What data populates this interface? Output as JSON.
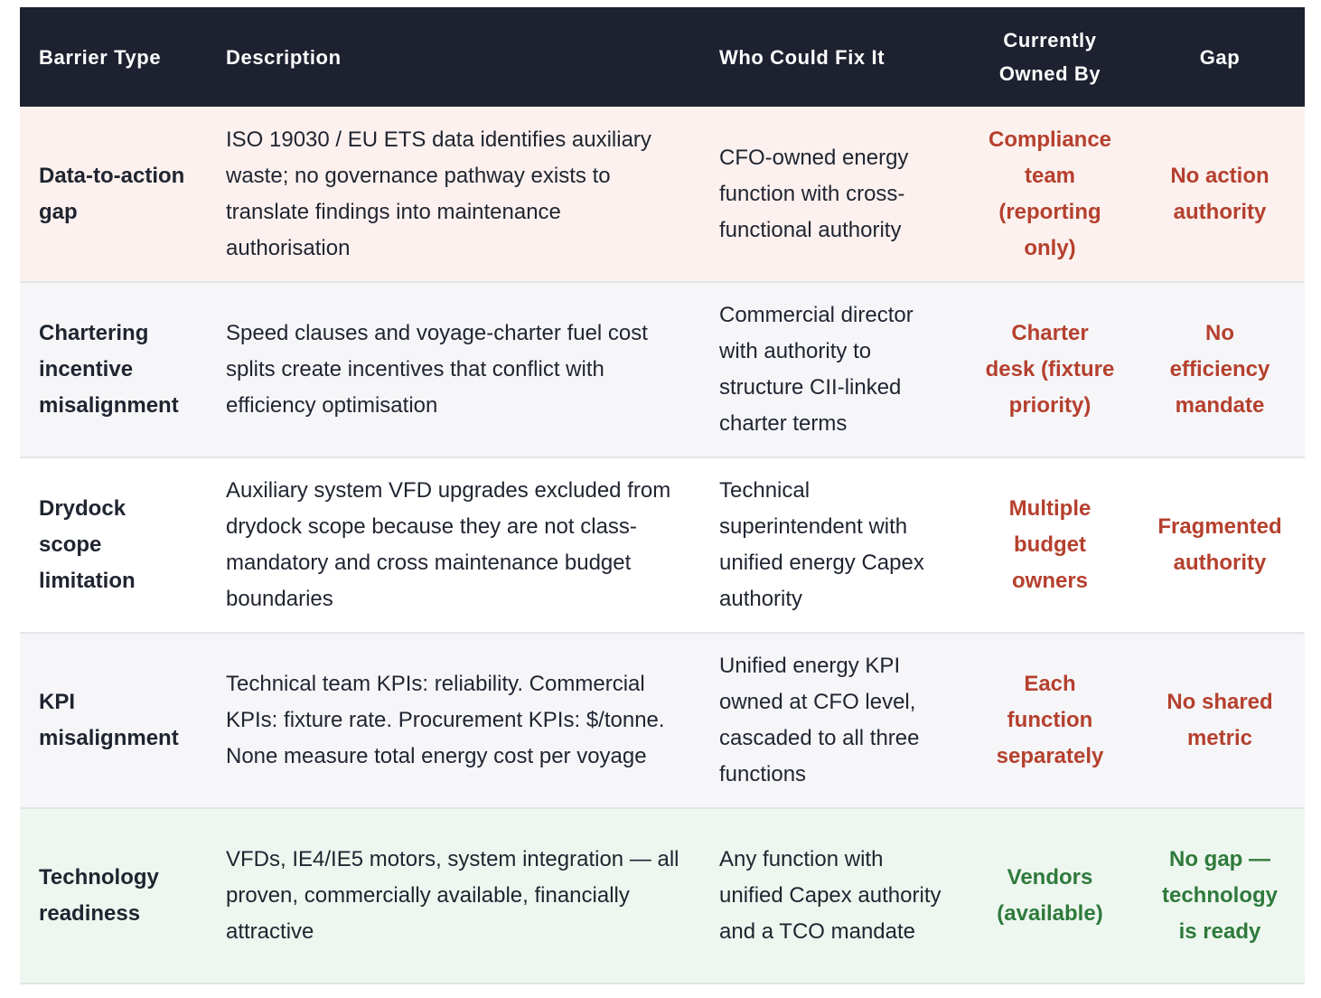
{
  "table": {
    "headers": {
      "barrier_type": "Barrier Type",
      "description": "Description",
      "who_could_fix": "Who Could Fix It",
      "currently_owned_by": "Currently Owned By",
      "gap": "Gap"
    },
    "rows": [
      {
        "barrier": "Data-to-action gap",
        "description": "ISO 19030 / EU ETS data identifies auxiliary waste; no governance pathway exists to translate findings into maintenance authorisation",
        "who_could_fix": "CFO-owned energy function with cross-functional authority",
        "owned_by": "Compliance team (reporting only)",
        "gap": "No action authority",
        "status_color": "#b5402e"
      },
      {
        "barrier": "Chartering incentive misalignment",
        "description": "Speed clauses and voyage-charter fuel cost splits create incentives that conflict with efficiency optimisation",
        "who_could_fix": "Commercial director with authority to structure CII-linked charter terms",
        "owned_by": "Charter desk (fixture priority)",
        "gap": "No efficiency mandate",
        "status_color": "#b5402e"
      },
      {
        "barrier": "Drydock scope limitation",
        "description": "Auxiliary system VFD upgrades excluded from drydock scope because they are not class-mandatory and cross maintenance budget boundaries",
        "who_could_fix": "Technical superintendent with unified energy Capex authority",
        "owned_by": "Multiple budget owners",
        "gap": "Fragmented authority",
        "status_color": "#b5402e"
      },
      {
        "barrier": "KPI misalignment",
        "description": "Technical team KPIs: reliability. Commercial KPIs: fixture rate. Procurement KPIs: $/tonne. None measure total energy cost per voyage",
        "who_could_fix": "Unified energy KPI owned at CFO level, cascaded to all three functions",
        "owned_by": "Each function separately",
        "gap": "No shared metric",
        "status_color": "#b5402e"
      },
      {
        "barrier": "Technology readiness",
        "description": "VFDs, IE4/IE5 motors, system integration — all proven, commercially available, financially attractive",
        "who_could_fix": "Any function with unified Capex authority and a TCO mandate",
        "owned_by": "Vendors (available)",
        "gap": "No gap — technology is ready",
        "status_color": "#2e7a3c"
      }
    ]
  },
  "colors": {
    "header_bg": "#1e2130",
    "red_text": "#b5402e",
    "green_text": "#2e7a3c",
    "row_pink": "#fcf1ee",
    "row_grey": "#f6f6f9",
    "row_green": "#eef7ef"
  }
}
